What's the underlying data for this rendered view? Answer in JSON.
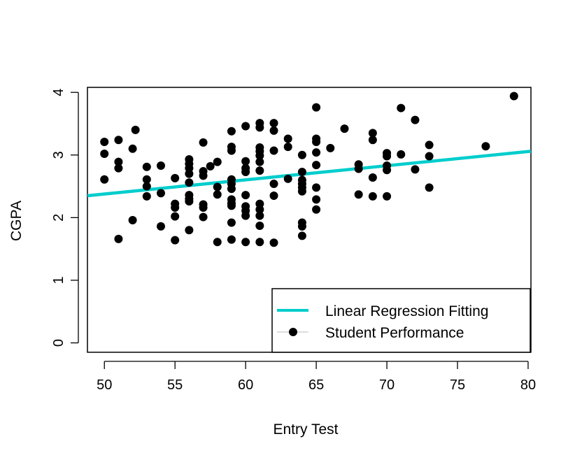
{
  "chart_data": {
    "type": "scatter",
    "title": "",
    "xlabel": "Entry Test",
    "ylabel": "CGPA",
    "xlim": [
      48.8,
      80.2
    ],
    "ylim": [
      -0.15,
      4.08
    ],
    "xticks": [
      "50",
      "55",
      "60",
      "65",
      "70",
      "75",
      "80"
    ],
    "yticks": [
      "0",
      "1",
      "2",
      "3",
      "4"
    ],
    "grid": false,
    "legend_position": "bottom-right",
    "colors": {
      "points": "#000000",
      "regression": "#00CDCD",
      "frame": "#000000"
    },
    "series": [
      {
        "name": "Student Performance",
        "kind": "points",
        "points": [
          [
            50,
            3.21
          ],
          [
            50,
            3.02
          ],
          [
            50,
            2.61
          ],
          [
            51,
            3.24
          ],
          [
            51,
            2.89
          ],
          [
            51,
            2.79
          ],
          [
            51,
            1.66
          ],
          [
            52,
            3.1
          ],
          [
            52,
            1.96
          ],
          [
            52.2,
            3.4
          ],
          [
            53,
            2.81
          ],
          [
            53,
            2.61
          ],
          [
            53,
            2.5
          ],
          [
            53,
            2.34
          ],
          [
            54,
            2.83
          ],
          [
            54,
            2.39
          ],
          [
            54,
            1.86
          ],
          [
            55,
            2.63
          ],
          [
            55,
            2.22
          ],
          [
            55,
            2.16
          ],
          [
            55,
            2.02
          ],
          [
            55,
            1.64
          ],
          [
            56,
            2.93
          ],
          [
            56,
            2.86
          ],
          [
            56,
            2.79
          ],
          [
            56,
            2.7
          ],
          [
            56,
            2.56
          ],
          [
            56,
            2.36
          ],
          [
            56,
            2.3
          ],
          [
            56,
            2.26
          ],
          [
            56,
            1.8
          ],
          [
            57,
            3.2
          ],
          [
            57,
            2.74
          ],
          [
            57,
            2.67
          ],
          [
            57,
            2.21
          ],
          [
            57,
            2.16
          ],
          [
            57,
            2.01
          ],
          [
            57.5,
            2.82
          ],
          [
            58,
            2.89
          ],
          [
            58,
            2.49
          ],
          [
            58,
            2.37
          ],
          [
            58,
            1.61
          ],
          [
            59,
            3.38
          ],
          [
            59,
            3.13
          ],
          [
            59,
            3.07
          ],
          [
            59,
            2.61
          ],
          [
            59,
            2.54
          ],
          [
            59,
            2.46
          ],
          [
            59,
            2.29
          ],
          [
            59,
            2.23
          ],
          [
            59,
            2.19
          ],
          [
            59,
            1.92
          ],
          [
            59,
            1.65
          ],
          [
            60,
            3.46
          ],
          [
            60,
            2.9
          ],
          [
            60,
            2.79
          ],
          [
            60,
            2.73
          ],
          [
            60,
            2.36
          ],
          [
            60,
            2.18
          ],
          [
            60,
            2.11
          ],
          [
            60,
            2.03
          ],
          [
            60,
            1.61
          ],
          [
            61,
            3.51
          ],
          [
            61,
            3.44
          ],
          [
            61,
            3.12
          ],
          [
            61,
            3.06
          ],
          [
            61,
            2.99
          ],
          [
            61,
            2.89
          ],
          [
            61,
            2.75
          ],
          [
            61,
            2.22
          ],
          [
            61,
            2.13
          ],
          [
            61,
            2.03
          ],
          [
            61,
            1.87
          ],
          [
            61,
            1.61
          ],
          [
            62,
            3.51
          ],
          [
            62,
            3.39
          ],
          [
            62,
            3.07
          ],
          [
            62,
            2.54
          ],
          [
            62,
            2.35
          ],
          [
            62,
            1.6
          ],
          [
            63,
            3.26
          ],
          [
            63,
            3.13
          ],
          [
            63,
            2.62
          ],
          [
            64,
            3.0
          ],
          [
            64,
            2.73
          ],
          [
            64,
            2.6
          ],
          [
            64,
            2.54
          ],
          [
            64,
            2.48
          ],
          [
            64,
            2.42
          ],
          [
            64,
            1.92
          ],
          [
            64,
            1.86
          ],
          [
            64,
            1.71
          ],
          [
            65,
            3.76
          ],
          [
            65,
            3.26
          ],
          [
            65,
            3.21
          ],
          [
            65,
            3.04
          ],
          [
            65,
            2.84
          ],
          [
            65,
            2.48
          ],
          [
            65,
            2.29
          ],
          [
            65,
            2.13
          ],
          [
            66,
            3.11
          ],
          [
            67,
            3.42
          ],
          [
            68,
            2.85
          ],
          [
            68,
            2.78
          ],
          [
            68,
            2.37
          ],
          [
            69,
            3.35
          ],
          [
            69,
            3.24
          ],
          [
            69,
            2.64
          ],
          [
            69,
            2.34
          ],
          [
            70,
            3.03
          ],
          [
            70,
            2.98
          ],
          [
            70,
            2.83
          ],
          [
            70,
            2.76
          ],
          [
            70,
            2.34
          ],
          [
            71,
            3.75
          ],
          [
            71,
            3.01
          ],
          [
            72,
            3.56
          ],
          [
            72,
            2.77
          ],
          [
            73,
            3.16
          ],
          [
            73,
            2.98
          ],
          [
            73,
            2.48
          ],
          [
            77,
            3.14
          ],
          [
            79,
            3.94
          ]
        ]
      },
      {
        "name": "Linear Regression Fitting",
        "kind": "line",
        "x": [
          48.8,
          80.2
        ],
        "y": [
          2.35,
          3.06
        ]
      }
    ]
  }
}
